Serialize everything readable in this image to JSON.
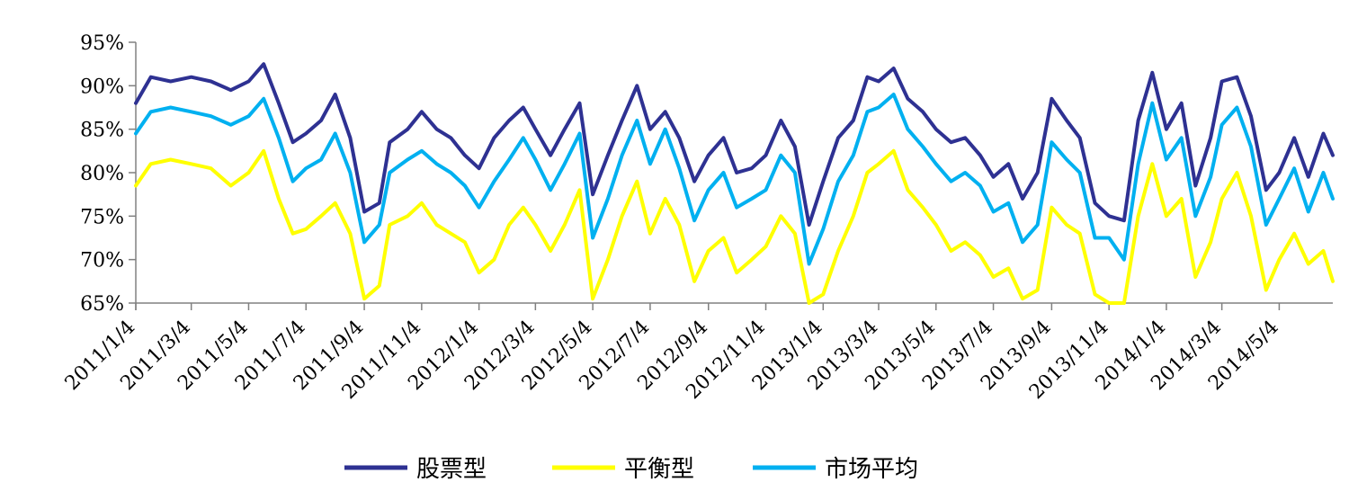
{
  "chart_data": {
    "type": "line",
    "title": "",
    "xlabel": "",
    "ylabel": "",
    "ylim": [
      65,
      95
    ],
    "y_unit": "%",
    "yticks": [
      95,
      90,
      85,
      80,
      75,
      70,
      65
    ],
    "ytick_labels": [
      "95%",
      "90%",
      "85%",
      "80%",
      "75%",
      "70%",
      "65%"
    ],
    "x_range": [
      "2011/1/4",
      "2014/6/30"
    ],
    "xticks": [
      "2011/1/4",
      "2011/3/4",
      "2011/5/4",
      "2011/7/4",
      "2011/9/4",
      "2011/11/4",
      "2012/1/4",
      "2012/3/4",
      "2012/5/4",
      "2012/7/4",
      "2012/9/4",
      "2012/11/4",
      "2013/1/4",
      "2013/3/4",
      "2013/5/4",
      "2013/7/4",
      "2013/9/4",
      "2013/11/4",
      "2014/1/4",
      "2014/3/4",
      "2014/5/4"
    ],
    "grid": false,
    "legend_position": "bottom",
    "series": [
      {
        "name": "股票型",
        "color": "#2E3192",
        "points": [
          [
            "2011/1/4",
            88
          ],
          [
            "2011/1/20",
            91
          ],
          [
            "2011/2/10",
            90.5
          ],
          [
            "2011/3/4",
            91
          ],
          [
            "2011/3/25",
            90.5
          ],
          [
            "2011/4/15",
            89.5
          ],
          [
            "2011/5/4",
            90.5
          ],
          [
            "2011/5/20",
            92.5
          ],
          [
            "2011/6/5",
            88
          ],
          [
            "2011/6/20",
            83.5
          ],
          [
            "2011/7/4",
            84.5
          ],
          [
            "2011/7/20",
            86
          ],
          [
            "2011/8/4",
            89
          ],
          [
            "2011/8/20",
            84
          ],
          [
            "2011/9/4",
            75.5
          ],
          [
            "2011/9/20",
            76.5
          ],
          [
            "2011/10/1",
            83.5
          ],
          [
            "2011/10/20",
            85
          ],
          [
            "2011/11/4",
            87
          ],
          [
            "2011/11/20",
            85
          ],
          [
            "2011/12/5",
            84
          ],
          [
            "2011/12/20",
            82
          ],
          [
            "2012/1/4",
            80.5
          ],
          [
            "2012/1/20",
            84
          ],
          [
            "2012/2/5",
            86
          ],
          [
            "2012/2/20",
            87.5
          ],
          [
            "2012/3/4",
            85
          ],
          [
            "2012/3/20",
            82
          ],
          [
            "2012/4/4",
            85
          ],
          [
            "2012/4/20",
            88
          ],
          [
            "2012/5/4",
            77.5
          ],
          [
            "2012/5/20",
            82
          ],
          [
            "2012/6/4",
            86
          ],
          [
            "2012/6/20",
            90
          ],
          [
            "2012/7/4",
            85
          ],
          [
            "2012/7/20",
            87
          ],
          [
            "2012/8/4",
            84
          ],
          [
            "2012/8/20",
            79
          ],
          [
            "2012/9/4",
            82
          ],
          [
            "2012/9/20",
            84
          ],
          [
            "2012/10/4",
            80
          ],
          [
            "2012/10/20",
            80.5
          ],
          [
            "2012/11/4",
            82
          ],
          [
            "2012/11/20",
            86
          ],
          [
            "2012/12/5",
            83
          ],
          [
            "2012/12/20",
            74
          ],
          [
            "2013/1/4",
            79
          ],
          [
            "2013/1/20",
            84
          ],
          [
            "2013/2/5",
            86
          ],
          [
            "2013/2/20",
            91
          ],
          [
            "2013/3/4",
            90.5
          ],
          [
            "2013/3/20",
            92
          ],
          [
            "2013/4/4",
            88.5
          ],
          [
            "2013/4/20",
            87
          ],
          [
            "2013/5/4",
            85
          ],
          [
            "2013/5/20",
            83.5
          ],
          [
            "2013/6/4",
            84
          ],
          [
            "2013/6/20",
            82
          ],
          [
            "2013/7/4",
            79.5
          ],
          [
            "2013/7/20",
            81
          ],
          [
            "2013/8/4",
            77
          ],
          [
            "2013/8/20",
            80
          ],
          [
            "2013/9/4",
            88.5
          ],
          [
            "2013/9/20",
            86
          ],
          [
            "2013/10/4",
            84
          ],
          [
            "2013/10/20",
            76.5
          ],
          [
            "2013/11/4",
            75
          ],
          [
            "2013/11/20",
            74.5
          ],
          [
            "2013/12/5",
            86
          ],
          [
            "2013/12/20",
            91.5
          ],
          [
            "2014/1/4",
            85
          ],
          [
            "2014/1/20",
            88
          ],
          [
            "2014/2/4",
            78.5
          ],
          [
            "2014/2/20",
            84
          ],
          [
            "2014/3/4",
            90.5
          ],
          [
            "2014/3/20",
            91
          ],
          [
            "2014/4/4",
            86.5
          ],
          [
            "2014/4/20",
            78
          ],
          [
            "2014/5/4",
            80
          ],
          [
            "2014/5/20",
            84
          ],
          [
            "2014/6/4",
            79.5
          ],
          [
            "2014/6/20",
            84.5
          ],
          [
            "2014/6/30",
            82
          ]
        ]
      },
      {
        "name": "平衡型",
        "color": "#FFFF00",
        "points": [
          [
            "2011/1/4",
            78.5
          ],
          [
            "2011/1/20",
            81
          ],
          [
            "2011/2/10",
            81.5
          ],
          [
            "2011/3/4",
            81
          ],
          [
            "2011/3/25",
            80.5
          ],
          [
            "2011/4/15",
            78.5
          ],
          [
            "2011/5/4",
            80
          ],
          [
            "2011/5/20",
            82.5
          ],
          [
            "2011/6/5",
            77
          ],
          [
            "2011/6/20",
            73
          ],
          [
            "2011/7/4",
            73.5
          ],
          [
            "2011/7/20",
            75
          ],
          [
            "2011/8/4",
            76.5
          ],
          [
            "2011/8/20",
            73
          ],
          [
            "2011/9/4",
            65.5
          ],
          [
            "2011/9/20",
            67
          ],
          [
            "2011/10/1",
            74
          ],
          [
            "2011/10/20",
            75
          ],
          [
            "2011/11/4",
            76.5
          ],
          [
            "2011/11/20",
            74
          ],
          [
            "2011/12/5",
            73
          ],
          [
            "2011/12/20",
            72
          ],
          [
            "2012/1/4",
            68.5
          ],
          [
            "2012/1/20",
            70
          ],
          [
            "2012/2/5",
            74
          ],
          [
            "2012/2/20",
            76
          ],
          [
            "2012/3/4",
            74
          ],
          [
            "2012/3/20",
            71
          ],
          [
            "2012/4/4",
            74
          ],
          [
            "2012/4/20",
            78
          ],
          [
            "2012/5/4",
            65.5
          ],
          [
            "2012/5/20",
            70
          ],
          [
            "2012/6/4",
            75
          ],
          [
            "2012/6/20",
            79
          ],
          [
            "2012/7/4",
            73
          ],
          [
            "2012/7/20",
            77
          ],
          [
            "2012/8/4",
            74
          ],
          [
            "2012/8/20",
            67.5
          ],
          [
            "2012/9/4",
            71
          ],
          [
            "2012/9/20",
            72.5
          ],
          [
            "2012/10/4",
            68.5
          ],
          [
            "2012/10/20",
            70
          ],
          [
            "2012/11/4",
            71.5
          ],
          [
            "2012/11/20",
            75
          ],
          [
            "2012/12/5",
            73
          ],
          [
            "2012/12/20",
            65
          ],
          [
            "2013/1/4",
            66
          ],
          [
            "2013/1/20",
            71
          ],
          [
            "2013/2/5",
            75
          ],
          [
            "2013/2/20",
            80
          ],
          [
            "2013/3/4",
            81
          ],
          [
            "2013/3/20",
            82.5
          ],
          [
            "2013/4/4",
            78
          ],
          [
            "2013/4/20",
            76
          ],
          [
            "2013/5/4",
            74
          ],
          [
            "2013/5/20",
            71
          ],
          [
            "2013/6/4",
            72
          ],
          [
            "2013/6/20",
            70.5
          ],
          [
            "2013/7/4",
            68
          ],
          [
            "2013/7/20",
            69
          ],
          [
            "2013/8/4",
            65.5
          ],
          [
            "2013/8/20",
            66.5
          ],
          [
            "2013/9/4",
            76
          ],
          [
            "2013/9/20",
            74
          ],
          [
            "2013/10/4",
            73
          ],
          [
            "2013/10/20",
            66
          ],
          [
            "2013/11/4",
            65
          ],
          [
            "2013/11/20",
            65
          ],
          [
            "2013/12/5",
            75
          ],
          [
            "2013/12/20",
            81
          ],
          [
            "2014/1/4",
            75
          ],
          [
            "2014/1/20",
            77
          ],
          [
            "2014/2/4",
            68
          ],
          [
            "2014/2/20",
            72
          ],
          [
            "2014/3/4",
            77
          ],
          [
            "2014/3/20",
            80
          ],
          [
            "2014/4/4",
            75
          ],
          [
            "2014/4/20",
            66.5
          ],
          [
            "2014/5/4",
            70
          ],
          [
            "2014/5/20",
            73
          ],
          [
            "2014/6/4",
            69.5
          ],
          [
            "2014/6/20",
            71
          ],
          [
            "2014/6/30",
            67.5
          ]
        ]
      },
      {
        "name": "市场平均",
        "color": "#00B0F0",
        "points": [
          [
            "2011/1/4",
            84.5
          ],
          [
            "2011/1/20",
            87
          ],
          [
            "2011/2/10",
            87.5
          ],
          [
            "2011/3/4",
            87
          ],
          [
            "2011/3/25",
            86.5
          ],
          [
            "2011/4/15",
            85.5
          ],
          [
            "2011/5/4",
            86.5
          ],
          [
            "2011/5/20",
            88.5
          ],
          [
            "2011/6/5",
            84
          ],
          [
            "2011/6/20",
            79
          ],
          [
            "2011/7/4",
            80.5
          ],
          [
            "2011/7/20",
            81.5
          ],
          [
            "2011/8/4",
            84.5
          ],
          [
            "2011/8/20",
            80
          ],
          [
            "2011/9/4",
            72
          ],
          [
            "2011/9/20",
            74
          ],
          [
            "2011/10/1",
            80
          ],
          [
            "2011/10/20",
            81.5
          ],
          [
            "2011/11/4",
            82.5
          ],
          [
            "2011/11/20",
            81
          ],
          [
            "2011/12/5",
            80
          ],
          [
            "2011/12/20",
            78.5
          ],
          [
            "2012/1/4",
            76
          ],
          [
            "2012/1/20",
            79
          ],
          [
            "2012/2/5",
            81.5
          ],
          [
            "2012/2/20",
            84
          ],
          [
            "2012/3/4",
            81.5
          ],
          [
            "2012/3/20",
            78
          ],
          [
            "2012/4/4",
            81
          ],
          [
            "2012/4/20",
            84.5
          ],
          [
            "2012/5/4",
            72.5
          ],
          [
            "2012/5/20",
            77
          ],
          [
            "2012/6/4",
            82
          ],
          [
            "2012/6/20",
            86
          ],
          [
            "2012/7/4",
            81
          ],
          [
            "2012/7/20",
            85
          ],
          [
            "2012/8/4",
            80.5
          ],
          [
            "2012/8/20",
            74.5
          ],
          [
            "2012/9/4",
            78
          ],
          [
            "2012/9/20",
            80
          ],
          [
            "2012/10/4",
            76
          ],
          [
            "2012/10/20",
            77
          ],
          [
            "2012/11/4",
            78
          ],
          [
            "2012/11/20",
            82
          ],
          [
            "2012/12/5",
            80
          ],
          [
            "2012/12/20",
            69.5
          ],
          [
            "2013/1/4",
            73.5
          ],
          [
            "2013/1/20",
            79
          ],
          [
            "2013/2/5",
            82
          ],
          [
            "2013/2/20",
            87
          ],
          [
            "2013/3/4",
            87.5
          ],
          [
            "2013/3/20",
            89
          ],
          [
            "2013/4/4",
            85
          ],
          [
            "2013/4/20",
            83
          ],
          [
            "2013/5/4",
            81
          ],
          [
            "2013/5/20",
            79
          ],
          [
            "2013/6/4",
            80
          ],
          [
            "2013/6/20",
            78.5
          ],
          [
            "2013/7/4",
            75.5
          ],
          [
            "2013/7/20",
            76.5
          ],
          [
            "2013/8/4",
            72
          ],
          [
            "2013/8/20",
            74
          ],
          [
            "2013/9/4",
            83.5
          ],
          [
            "2013/9/20",
            81.5
          ],
          [
            "2013/10/4",
            80
          ],
          [
            "2013/10/20",
            72.5
          ],
          [
            "2013/11/4",
            72.5
          ],
          [
            "2013/11/20",
            70
          ],
          [
            "2013/12/5",
            81
          ],
          [
            "2013/12/20",
            88
          ],
          [
            "2014/1/4",
            81.5
          ],
          [
            "2014/1/20",
            84
          ],
          [
            "2014/2/4",
            75
          ],
          [
            "2014/2/20",
            79.5
          ],
          [
            "2014/3/4",
            85.5
          ],
          [
            "2014/3/20",
            87.5
          ],
          [
            "2014/4/4",
            83
          ],
          [
            "2014/4/20",
            74
          ],
          [
            "2014/5/4",
            77
          ],
          [
            "2014/5/20",
            80.5
          ],
          [
            "2014/6/4",
            75.5
          ],
          [
            "2014/6/20",
            80
          ],
          [
            "2014/6/30",
            77
          ]
        ]
      }
    ]
  }
}
